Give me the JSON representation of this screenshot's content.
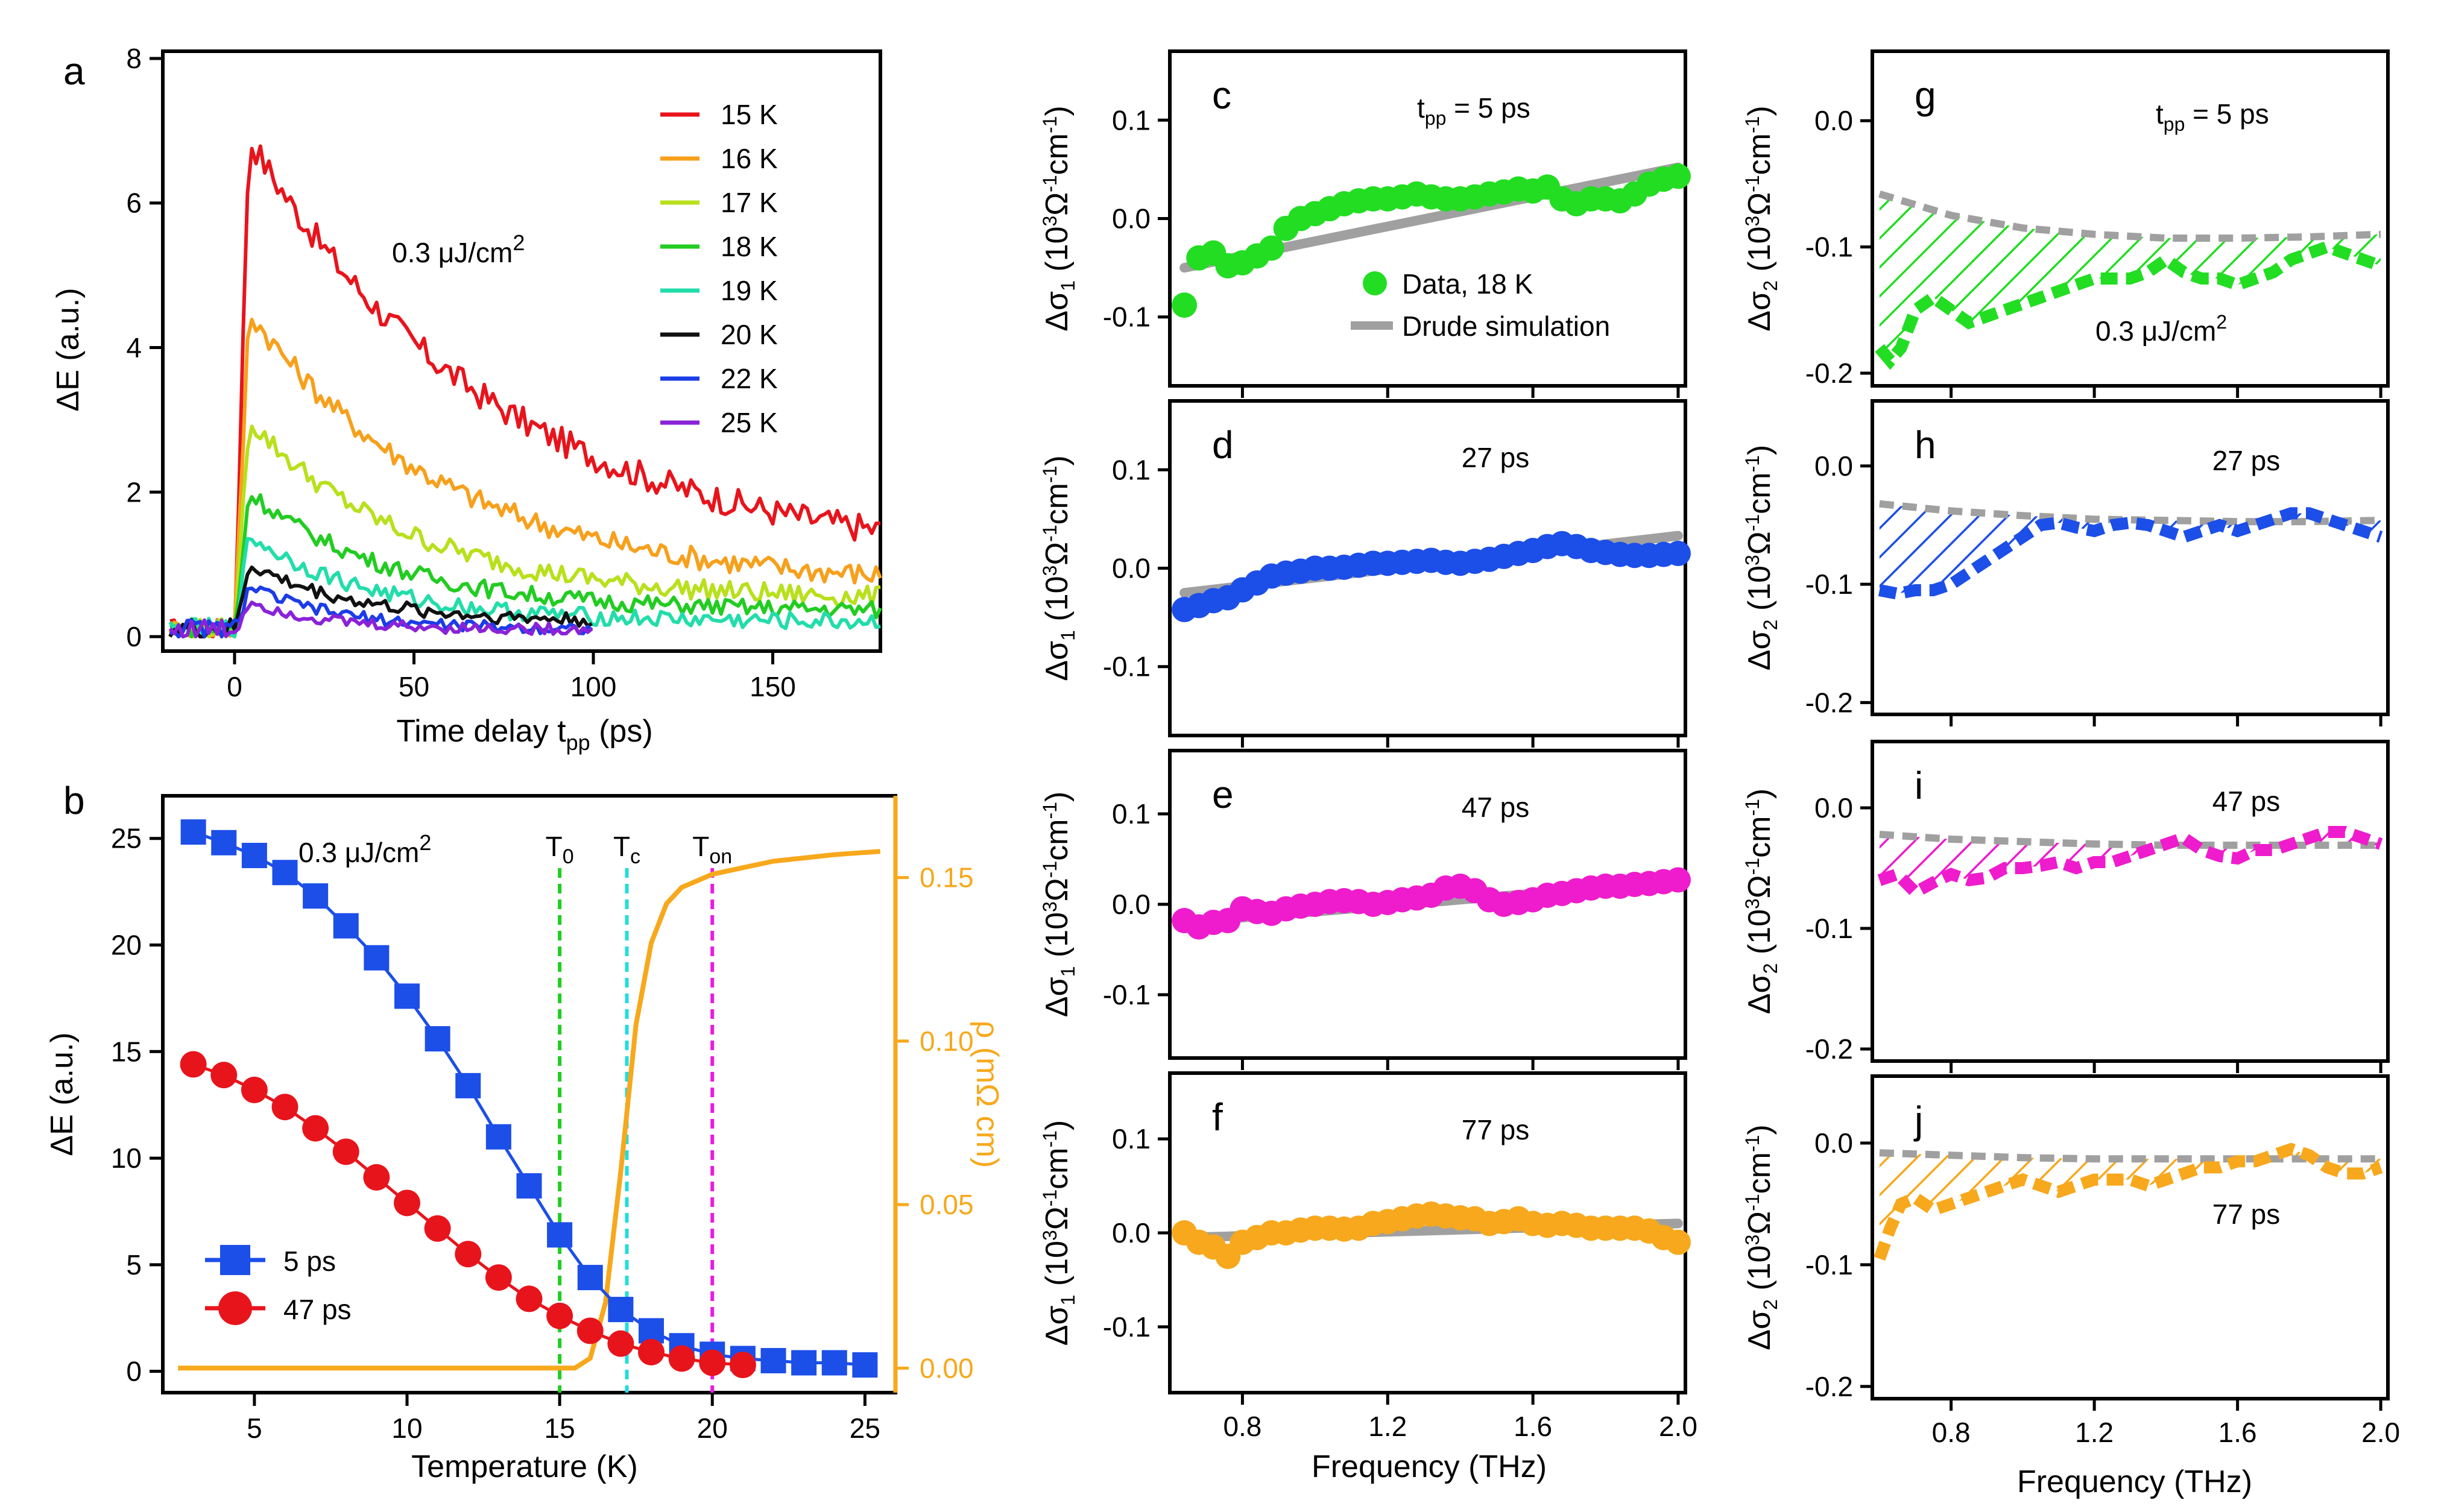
{
  "chart_data": [
    {
      "panel": "a",
      "type": "line",
      "xlabel": "Time delay t",
      "xlabel_sub": "pp",
      "xlabel_tail": " (ps)",
      "ylabel": "ΔE (a.u.)",
      "xlim": [
        -20,
        180
      ],
      "ylim": [
        -0.2,
        8.1
      ],
      "xticks": [
        "0",
        "50",
        "100",
        "150"
      ],
      "yticks": [
        "0",
        "2",
        "4",
        "6",
        "8"
      ],
      "annotation": "0.3 μJ/cm",
      "annotation_sup": "2",
      "series": [
        {
          "name": "15 K",
          "color": "#e8141c",
          "peak": 6.9,
          "decay": 70,
          "baseline": 1.0,
          "end": 181,
          "noise": 0.25
        },
        {
          "name": "16 K",
          "color": "#f7a01c",
          "peak": 4.5,
          "decay": 55,
          "baseline": 0.7,
          "end": 181,
          "noise": 0.2
        },
        {
          "name": "17 K",
          "color": "#b8e01c",
          "peak": 3.0,
          "decay": 45,
          "baseline": 0.5,
          "end": 181,
          "noise": 0.18
        },
        {
          "name": "18 K",
          "color": "#22cc22",
          "peak": 2.0,
          "decay": 40,
          "baseline": 0.35,
          "end": 181,
          "noise": 0.15
        },
        {
          "name": "19 K",
          "color": "#22ddaa",
          "peak": 1.4,
          "decay": 35,
          "baseline": 0.2,
          "end": 181,
          "noise": 0.15
        },
        {
          "name": "20 K",
          "color": "#111111",
          "peak": 1.0,
          "decay": 30,
          "baseline": 0.2,
          "end": 100,
          "noise": 0.12
        },
        {
          "name": "22 K",
          "color": "#1c3ce8",
          "peak": 0.7,
          "decay": 25,
          "baseline": 0.1,
          "end": 100,
          "noise": 0.1
        },
        {
          "name": "25 K",
          "color": "#8a22d8",
          "peak": 0.5,
          "decay": 20,
          "baseline": 0.1,
          "end": 100,
          "noise": 0.1
        }
      ]
    },
    {
      "panel": "b",
      "type": "line",
      "xlabel": "Temperature (K)",
      "ylabel": "ΔE (a.u.)",
      "y2label": "ρ (mΩ cm)",
      "xlim": [
        2,
        26
      ],
      "ylim": [
        -1,
        27
      ],
      "y2lim": [
        -0.0075,
        0.175
      ],
      "xticks": [
        "5",
        "10",
        "15",
        "20",
        "25"
      ],
      "yticks": [
        "0",
        "5",
        "10",
        "15",
        "20",
        "25"
      ],
      "y2ticks": [
        "0.00",
        "0.05",
        "0.10",
        "0.15"
      ],
      "annotation": "0.3 μJ/cm",
      "annotation_sup": "2",
      "vlines": [
        {
          "x": 15,
          "color": "#22cc22",
          "label": "T",
          "sub": "0"
        },
        {
          "x": 17.2,
          "color": "#22dddd",
          "label": "T",
          "sub": "c"
        },
        {
          "x": 20,
          "color": "#e81ce0",
          "label": "T",
          "sub": "on"
        }
      ],
      "series": [
        {
          "name": "5 ps",
          "color": "#1c4ee8",
          "marker": "square",
          "x": [
            3,
            4,
            5,
            6,
            7,
            8,
            9,
            10,
            11,
            12,
            13,
            14,
            15,
            16,
            17,
            18,
            19,
            20,
            21,
            22,
            23,
            24,
            25
          ],
          "y": [
            25.3,
            24.8,
            24.2,
            23.4,
            22.3,
            20.9,
            19.4,
            17.6,
            15.6,
            13.4,
            11.0,
            8.7,
            6.4,
            4.4,
            2.9,
            1.9,
            1.2,
            0.8,
            0.6,
            0.5,
            0.4,
            0.4,
            0.3
          ]
        },
        {
          "name": "47 ps",
          "color": "#e8141c",
          "marker": "circle",
          "x": [
            3,
            4,
            5,
            6,
            7,
            8,
            9,
            10,
            11,
            12,
            13,
            14,
            15,
            16,
            17,
            18,
            19,
            20,
            21
          ],
          "y": [
            14.4,
            13.9,
            13.2,
            12.4,
            11.4,
            10.3,
            9.1,
            7.9,
            6.7,
            5.5,
            4.4,
            3.4,
            2.6,
            1.9,
            1.3,
            0.9,
            0.6,
            0.4,
            0.3
          ]
        },
        {
          "name": "ρ",
          "color": "#f7a81c",
          "marker": "none",
          "axis": "y2",
          "x": [
            2.5,
            15.5,
            16,
            16.5,
            17,
            17.5,
            18,
            18.5,
            19,
            20,
            21,
            22,
            23,
            24,
            25.5
          ],
          "y": [
            0.0,
            0.0,
            0.003,
            0.02,
            0.06,
            0.105,
            0.13,
            0.142,
            0.147,
            0.151,
            0.153,
            0.155,
            0.156,
            0.157,
            0.158
          ]
        }
      ]
    },
    {
      "panel": "c",
      "type": "scatter",
      "ylabel": "Δσ",
      "ylabel_sub": "1",
      "xlim": [
        0.6,
        2.02
      ],
      "ylim": [
        -0.17,
        0.17
      ],
      "yticks": [
        "0.1",
        "0.0",
        "-0.1"
      ],
      "annotation": "t",
      "annotation_sub": "pp",
      "annotation_tail": " = 5 ps",
      "color": "#22dd22",
      "legend": [
        "Data, 18 K",
        "Drude simulation"
      ],
      "x": [
        0.64,
        0.68,
        0.72,
        0.76,
        0.8,
        0.84,
        0.88,
        0.92,
        0.96,
        1.0,
        1.04,
        1.08,
        1.12,
        1.16,
        1.2,
        1.24,
        1.28,
        1.32,
        1.36,
        1.4,
        1.44,
        1.48,
        1.52,
        1.56,
        1.6,
        1.64,
        1.68,
        1.72,
        1.76,
        1.8,
        1.84,
        1.88,
        1.92,
        1.96,
        2.0
      ],
      "y": [
        -0.088,
        -0.04,
        -0.035,
        -0.048,
        -0.045,
        -0.038,
        -0.03,
        -0.01,
        0.0,
        0.005,
        0.01,
        0.015,
        0.018,
        0.02,
        0.02,
        0.022,
        0.025,
        0.022,
        0.02,
        0.02,
        0.022,
        0.025,
        0.027,
        0.03,
        0.028,
        0.032,
        0.02,
        0.015,
        0.02,
        0.02,
        0.018,
        0.025,
        0.035,
        0.04,
        0.043
      ],
      "fit": [
        [
          0.64,
          -0.05
        ],
        [
          2.0,
          0.052
        ]
      ]
    },
    {
      "panel": "d",
      "type": "scatter",
      "ylabel": "Δσ",
      "ylabel_sub": "1",
      "xlim": [
        0.6,
        2.02
      ],
      "ylim": [
        -0.17,
        0.17
      ],
      "yticks": [
        "0.1",
        "0.0",
        "-0.1"
      ],
      "annotation": "27 ps",
      "color": "#1c4ee8",
      "x": [
        0.64,
        0.68,
        0.72,
        0.76,
        0.8,
        0.84,
        0.88,
        0.92,
        0.96,
        1.0,
        1.04,
        1.08,
        1.12,
        1.16,
        1.2,
        1.24,
        1.28,
        1.32,
        1.36,
        1.4,
        1.44,
        1.48,
        1.52,
        1.56,
        1.6,
        1.64,
        1.68,
        1.72,
        1.76,
        1.8,
        1.84,
        1.88,
        1.92,
        1.96,
        2.0
      ],
      "y": [
        -0.042,
        -0.038,
        -0.033,
        -0.03,
        -0.022,
        -0.015,
        -0.008,
        -0.005,
        -0.003,
        0.0,
        0.0,
        0.001,
        0.003,
        0.005,
        0.005,
        0.006,
        0.007,
        0.008,
        0.006,
        0.005,
        0.007,
        0.009,
        0.012,
        0.015,
        0.018,
        0.022,
        0.025,
        0.022,
        0.018,
        0.016,
        0.014,
        0.013,
        0.013,
        0.014,
        0.015
      ],
      "fit": [
        [
          0.64,
          -0.025
        ],
        [
          2.0,
          0.033
        ]
      ]
    },
    {
      "panel": "e",
      "type": "scatter",
      "ylabel": "Δσ",
      "ylabel_sub": "1",
      "xlim": [
        0.6,
        2.02
      ],
      "ylim": [
        -0.17,
        0.17
      ],
      "yticks": [
        "0.1",
        "0.0",
        "-0.1"
      ],
      "annotation": "47 ps",
      "color": "#ee1ccc",
      "x": [
        0.64,
        0.68,
        0.72,
        0.76,
        0.8,
        0.84,
        0.88,
        0.92,
        0.96,
        1.0,
        1.04,
        1.08,
        1.12,
        1.16,
        1.2,
        1.24,
        1.28,
        1.32,
        1.36,
        1.4,
        1.44,
        1.48,
        1.52,
        1.56,
        1.6,
        1.64,
        1.68,
        1.72,
        1.76,
        1.8,
        1.84,
        1.88,
        1.92,
        1.96,
        2.0
      ],
      "y": [
        -0.018,
        -0.025,
        -0.02,
        -0.018,
        -0.005,
        -0.008,
        -0.01,
        -0.005,
        -0.002,
        0.0,
        0.003,
        0.004,
        0.003,
        0.0,
        0.002,
        0.005,
        0.007,
        0.01,
        0.018,
        0.02,
        0.015,
        0.005,
        0.0,
        0.002,
        0.005,
        0.01,
        0.012,
        0.015,
        0.018,
        0.02,
        0.02,
        0.022,
        0.023,
        0.025,
        0.027
      ],
      "fit": [
        [
          0.64,
          -0.02
        ],
        [
          2.0,
          0.025
        ]
      ]
    },
    {
      "panel": "f",
      "type": "scatter",
      "ylabel": "Δσ",
      "ylabel_sub": "1",
      "xlim": [
        0.6,
        2.02
      ],
      "ylim": [
        -0.17,
        0.17
      ],
      "yticks": [
        "0.1",
        "0.0",
        "-0.1"
      ],
      "annotation": "77 ps",
      "color": "#f7a81c",
      "x": [
        0.64,
        0.68,
        0.72,
        0.76,
        0.8,
        0.84,
        0.88,
        0.92,
        0.96,
        1.0,
        1.04,
        1.08,
        1.12,
        1.16,
        1.2,
        1.24,
        1.28,
        1.32,
        1.36,
        1.4,
        1.44,
        1.48,
        1.52,
        1.56,
        1.6,
        1.64,
        1.68,
        1.72,
        1.76,
        1.8,
        1.84,
        1.88,
        1.92,
        1.96,
        2.0
      ],
      "y": [
        0.0,
        -0.01,
        -0.015,
        -0.025,
        -0.01,
        -0.005,
        0.0,
        0.0,
        0.003,
        0.005,
        0.005,
        0.004,
        0.005,
        0.01,
        0.012,
        0.015,
        0.018,
        0.02,
        0.018,
        0.016,
        0.015,
        0.01,
        0.012,
        0.015,
        0.01,
        0.008,
        0.01,
        0.008,
        0.005,
        0.005,
        0.005,
        0.005,
        0.002,
        -0.005,
        -0.01
      ],
      "fit": [
        [
          0.64,
          -0.005
        ],
        [
          2.0,
          0.01
        ]
      ]
    },
    {
      "panel": "g",
      "type": "area",
      "ylabel": "Δσ",
      "ylabel_sub": "2",
      "xlim": [
        0.58,
        2.02
      ],
      "ylim": [
        -0.21,
        0.055
      ],
      "yticks": [
        "0.0",
        "-0.1",
        "-0.2"
      ],
      "annotation": "t",
      "annotation_sub": "pp",
      "annotation_tail": " = 5 ps",
      "annotation2": "0.3 μJ/cm",
      "annotation2_sup": "2",
      "color": "#22dd22",
      "x": [
        0.6,
        0.63,
        0.66,
        0.7,
        0.75,
        0.8,
        0.85,
        0.9,
        0.95,
        1.0,
        1.05,
        1.1,
        1.15,
        1.2,
        1.25,
        1.3,
        1.35,
        1.4,
        1.45,
        1.5,
        1.55,
        1.6,
        1.65,
        1.7,
        1.75,
        1.8,
        1.85,
        1.9,
        1.95,
        2.0
      ],
      "y": [
        -0.18,
        -0.19,
        -0.18,
        -0.15,
        -0.14,
        -0.15,
        -0.16,
        -0.155,
        -0.15,
        -0.145,
        -0.14,
        -0.135,
        -0.13,
        -0.125,
        -0.125,
        -0.125,
        -0.12,
        -0.11,
        -0.12,
        -0.125,
        -0.125,
        -0.13,
        -0.125,
        -0.12,
        -0.11,
        -0.105,
        -0.1,
        -0.105,
        -0.11,
        -0.115
      ],
      "fit_x": [
        0.6,
        0.8,
        1.0,
        1.2,
        1.4,
        1.6,
        1.8,
        2.0
      ],
      "fit_y": [
        -0.058,
        -0.075,
        -0.085,
        -0.09,
        -0.093,
        -0.093,
        -0.092,
        -0.09
      ]
    },
    {
      "panel": "h",
      "type": "area",
      "ylabel": "Δσ",
      "ylabel_sub": "2",
      "xlim": [
        0.58,
        2.02
      ],
      "ylim": [
        -0.21,
        0.055
      ],
      "yticks": [
        "0.0",
        "-0.1",
        "-0.2"
      ],
      "annotation": "27 ps",
      "color": "#1c4ee8",
      "x": [
        0.6,
        0.65,
        0.7,
        0.75,
        0.8,
        0.85,
        0.9,
        0.95,
        1.0,
        1.05,
        1.1,
        1.15,
        1.2,
        1.25,
        1.3,
        1.35,
        1.4,
        1.45,
        1.5,
        1.55,
        1.6,
        1.65,
        1.7,
        1.75,
        1.8,
        1.85,
        1.9,
        1.95,
        2.0
      ],
      "y": [
        -0.105,
        -0.108,
        -0.105,
        -0.105,
        -0.1,
        -0.09,
        -0.08,
        -0.07,
        -0.06,
        -0.05,
        -0.048,
        -0.052,
        -0.055,
        -0.05,
        -0.048,
        -0.05,
        -0.055,
        -0.06,
        -0.055,
        -0.05,
        -0.055,
        -0.05,
        -0.045,
        -0.04,
        -0.04,
        -0.045,
        -0.05,
        -0.055,
        -0.06
      ],
      "fit_x": [
        0.6,
        0.8,
        1.0,
        1.2,
        1.4,
        1.6,
        1.8,
        2.0
      ],
      "fit_y": [
        -0.032,
        -0.038,
        -0.042,
        -0.045,
        -0.046,
        -0.047,
        -0.047,
        -0.046
      ]
    },
    {
      "panel": "i",
      "type": "area",
      "ylabel": "Δσ",
      "ylabel_sub": "2",
      "xlim": [
        0.58,
        2.02
      ],
      "ylim": [
        -0.21,
        0.055
      ],
      "yticks": [
        "0.0",
        "-0.1",
        "-0.2"
      ],
      "annotation": "47 ps",
      "color": "#ee1ccc",
      "x": [
        0.6,
        0.65,
        0.7,
        0.75,
        0.8,
        0.85,
        0.9,
        0.95,
        1.0,
        1.05,
        1.1,
        1.15,
        1.2,
        1.25,
        1.3,
        1.35,
        1.4,
        1.45,
        1.5,
        1.55,
        1.6,
        1.65,
        1.7,
        1.75,
        1.8,
        1.85,
        1.9,
        1.95,
        2.0
      ],
      "y": [
        -0.06,
        -0.055,
        -0.07,
        -0.062,
        -0.055,
        -0.06,
        -0.058,
        -0.05,
        -0.05,
        -0.048,
        -0.045,
        -0.05,
        -0.045,
        -0.045,
        -0.04,
        -0.035,
        -0.03,
        -0.025,
        -0.035,
        -0.04,
        -0.042,
        -0.035,
        -0.035,
        -0.03,
        -0.025,
        -0.02,
        -0.02,
        -0.025,
        -0.03
      ],
      "fit_x": [
        0.6,
        0.8,
        1.0,
        1.2,
        1.4,
        1.6,
        1.8,
        2.0
      ],
      "fit_y": [
        -0.022,
        -0.026,
        -0.028,
        -0.03,
        -0.031,
        -0.031,
        -0.031,
        -0.031
      ]
    },
    {
      "panel": "j",
      "type": "area",
      "ylabel": "Δσ",
      "ylabel_sub": "2",
      "xlim": [
        0.58,
        2.02
      ],
      "ylim": [
        -0.21,
        0.055
      ],
      "yticks": [
        "0.0",
        "-0.1",
        "-0.2"
      ],
      "annotation": "77 ps",
      "color": "#f7a81c",
      "x": [
        0.6,
        0.63,
        0.66,
        0.7,
        0.75,
        0.8,
        0.85,
        0.9,
        0.95,
        1.0,
        1.05,
        1.1,
        1.15,
        1.2,
        1.25,
        1.3,
        1.35,
        1.4,
        1.45,
        1.5,
        1.55,
        1.6,
        1.65,
        1.7,
        1.75,
        1.8,
        1.85,
        1.9,
        1.95,
        2.0
      ],
      "y": [
        -0.095,
        -0.07,
        -0.05,
        -0.045,
        -0.055,
        -0.05,
        -0.045,
        -0.04,
        -0.035,
        -0.03,
        -0.035,
        -0.04,
        -0.035,
        -0.03,
        -0.03,
        -0.03,
        -0.035,
        -0.03,
        -0.025,
        -0.02,
        -0.02,
        -0.015,
        -0.015,
        -0.01,
        -0.005,
        -0.01,
        -0.02,
        -0.025,
        -0.025,
        -0.02
      ],
      "fit_x": [
        0.6,
        0.8,
        1.0,
        1.2,
        1.4,
        1.6,
        1.8,
        2.0
      ],
      "fit_y": [
        -0.008,
        -0.01,
        -0.012,
        -0.013,
        -0.013,
        -0.013,
        -0.013,
        -0.013
      ]
    }
  ],
  "shared": {
    "freq_xlabel": "Frequency (THz)",
    "freq_xticks": [
      "0.8",
      "1.2",
      "1.6",
      "2.0"
    ],
    "units_prefix": " (10",
    "units_sup3": "3",
    "units_omega": "Ω",
    "units_sup_m1": "-1",
    "units_cm": "cm",
    "units_close": ")"
  }
}
